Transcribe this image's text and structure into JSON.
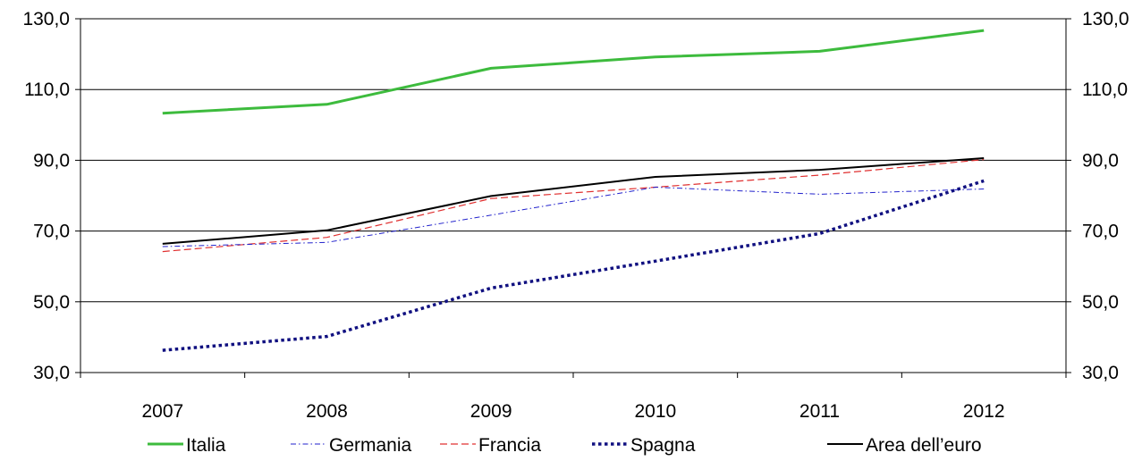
{
  "chart_data": {
    "type": "line",
    "title": "",
    "xlabel": "",
    "ylabel": "",
    "categories": [
      "2007",
      "2008",
      "2009",
      "2010",
      "2011",
      "2012"
    ],
    "ylim": [
      30,
      130
    ],
    "yticks": [
      "30,0",
      "50,0",
      "70,0",
      "90,0",
      "110,0",
      "130,0"
    ],
    "ytick_values": [
      30,
      50,
      70,
      90,
      110,
      130
    ],
    "grid": "horizontal",
    "right_axis": true,
    "legend_position": "bottom",
    "series": [
      {
        "name": "Italia",
        "values": [
          103.3,
          105.8,
          116.0,
          119.2,
          120.8,
          126.7
        ],
        "color": "#3dbb3d",
        "style": "solid-thick"
      },
      {
        "name": "Germania",
        "values": [
          65.6,
          66.8,
          74.5,
          82.4,
          80.4,
          81.9
        ],
        "color": "#2222cc",
        "style": "dash-dot"
      },
      {
        "name": "Francia",
        "values": [
          64.2,
          68.2,
          79.2,
          82.4,
          85.8,
          90.2
        ],
        "color": "#e03030",
        "style": "dashed"
      },
      {
        "name": "Spagna",
        "values": [
          36.3,
          40.2,
          53.9,
          61.5,
          69.3,
          84.2
        ],
        "color": "#101080",
        "style": "dotted-thick"
      },
      {
        "name": "Area dell’euro",
        "values": [
          66.4,
          70.2,
          79.9,
          85.3,
          87.3,
          90.6
        ],
        "color": "#000000",
        "style": "solid"
      }
    ]
  }
}
